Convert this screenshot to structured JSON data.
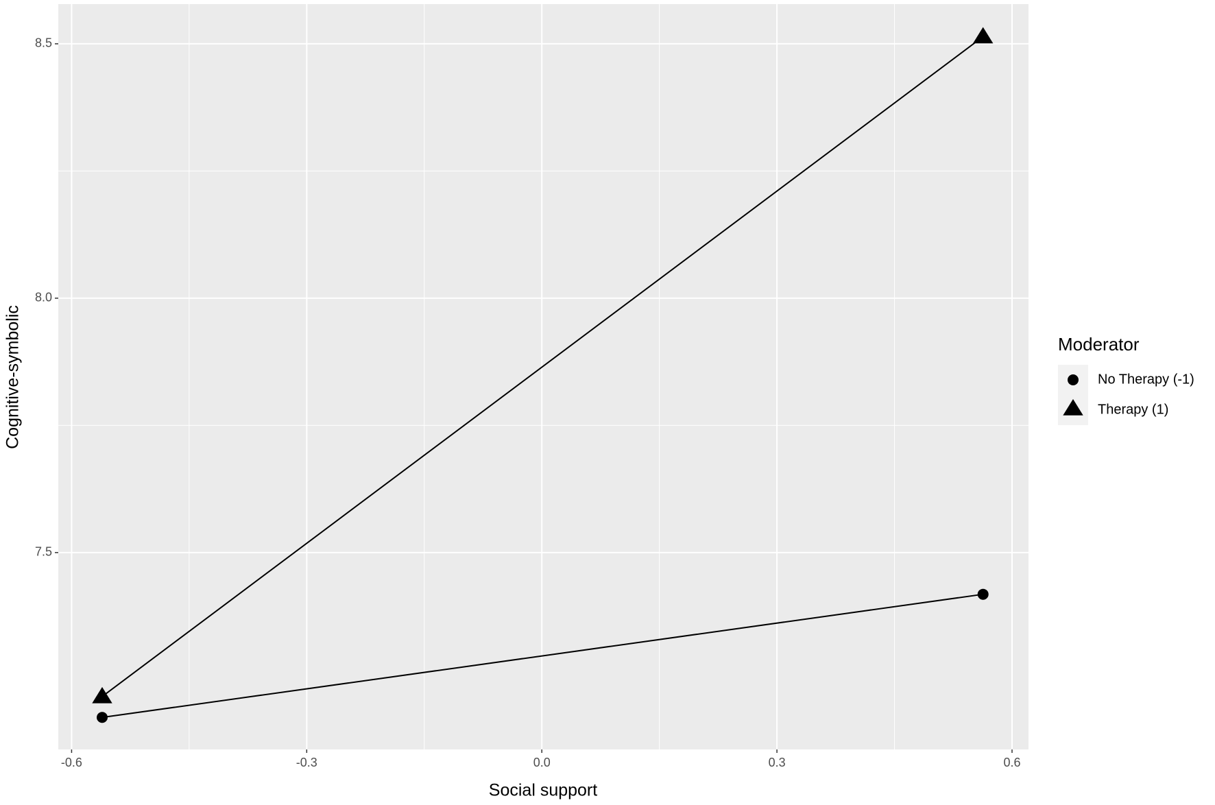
{
  "chart_data": {
    "type": "line",
    "x_label": "Social support",
    "y_label": "Cognitive-symbolic",
    "legend_title": "Moderator",
    "legend_position": "right",
    "grid": true,
    "xlim": [
      -0.617,
      0.621
    ],
    "ylim": [
      7.113,
      8.578
    ],
    "xticks": [
      -0.6,
      -0.3,
      0.0,
      0.3,
      0.6
    ],
    "yticks": [
      7.5,
      8.0,
      8.5
    ],
    "series": [
      {
        "name": "No Therapy (-1)",
        "color": "#000000",
        "shape": "circle",
        "x": [
          -0.561,
          0.563
        ],
        "values": [
          7.176,
          7.418
        ]
      },
      {
        "name": "Therapy (1)",
        "color": "#000000",
        "shape": "triangle",
        "x": [
          -0.561,
          0.563
        ],
        "values": [
          7.217,
          8.514
        ]
      }
    ]
  }
}
